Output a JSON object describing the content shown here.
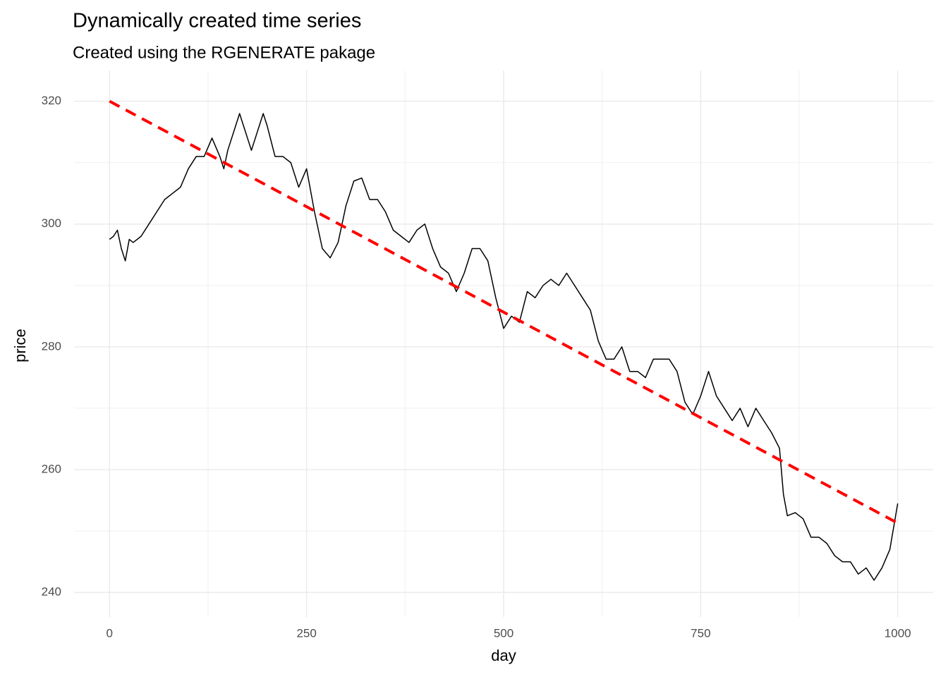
{
  "chart_data": {
    "type": "line",
    "title": "Dynamically created time series",
    "subtitle": "Created using the RGENERATE pakage",
    "x_label": "day",
    "y_label": "price",
    "series": [
      {
        "name": "price",
        "color": "#000000",
        "dash": false,
        "width": 1.5,
        "x": [
          0,
          5,
          10,
          15,
          20,
          25,
          30,
          40,
          50,
          60,
          70,
          80,
          90,
          100,
          110,
          120,
          130,
          140,
          145,
          150,
          160,
          165,
          170,
          180,
          190,
          195,
          200,
          210,
          220,
          230,
          240,
          250,
          260,
          270,
          280,
          290,
          300,
          310,
          320,
          330,
          340,
          350,
          360,
          370,
          380,
          390,
          400,
          410,
          420,
          430,
          440,
          450,
          460,
          470,
          480,
          490,
          500,
          510,
          520,
          530,
          540,
          550,
          560,
          570,
          580,
          590,
          600,
          610,
          620,
          630,
          640,
          650,
          660,
          670,
          680,
          690,
          700,
          710,
          720,
          730,
          740,
          750,
          760,
          770,
          780,
          790,
          800,
          810,
          820,
          830,
          840,
          850,
          855,
          860,
          870,
          880,
          890,
          900,
          910,
          920,
          930,
          940,
          950,
          960,
          970,
          980,
          990,
          1000
        ],
        "values": [
          297.5,
          298,
          299,
          296,
          294,
          297.5,
          297,
          298,
          300,
          302,
          304,
          305,
          306,
          309,
          311,
          311,
          314,
          311,
          309,
          312,
          316,
          318,
          316,
          312,
          316,
          318,
          316,
          311,
          311,
          310,
          306,
          309,
          302,
          296,
          294.5,
          297,
          303,
          307,
          307.5,
          304,
          304,
          302,
          299,
          298,
          297,
          299,
          300,
          296,
          293,
          292,
          289,
          292,
          296,
          296,
          294,
          288,
          283,
          285,
          284,
          289,
          288,
          290,
          291,
          290,
          292,
          290,
          288,
          286,
          281,
          278,
          278,
          280,
          276,
          276,
          275,
          278,
          278,
          278,
          276,
          271,
          269,
          272,
          276,
          272,
          270,
          268,
          270,
          267,
          270,
          268,
          266,
          263.5,
          256,
          252.5,
          253,
          252,
          249,
          249,
          248,
          246,
          245,
          245,
          243,
          244,
          242,
          244,
          247,
          254.5
        ]
      },
      {
        "name": "trend",
        "color": "#ff0000",
        "dash": true,
        "width": 4,
        "x": [
          0,
          1000
        ],
        "values": [
          320,
          251.3
        ]
      }
    ],
    "xlim": [
      -45,
      1045
    ],
    "ylim": [
      236,
      325
    ],
    "xticks": [
      0,
      250,
      500,
      750,
      1000
    ],
    "yticks": [
      240,
      260,
      280,
      300,
      320
    ],
    "x_minor_grid": [
      125,
      375,
      625,
      875
    ],
    "y_minor_grid": [
      250,
      270,
      290,
      310
    ],
    "grid": true
  }
}
